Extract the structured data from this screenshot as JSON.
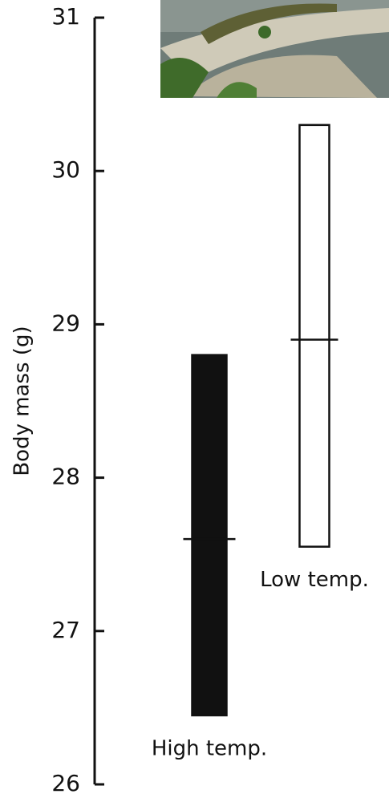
{
  "chart_data": {
    "type": "range",
    "y_label": "Body mass (g)",
    "categories": [
      "High temp.",
      "Low temp."
    ],
    "low": [
      26.45,
      27.55
    ],
    "high": [
      28.8,
      30.3
    ],
    "mean": [
      27.6,
      28.9
    ],
    "colors": [
      "#111111",
      "#ffffff"
    ],
    "ylim": [
      26,
      31
    ],
    "yticks": [
      26,
      27,
      28,
      29,
      30,
      31
    ]
  }
}
